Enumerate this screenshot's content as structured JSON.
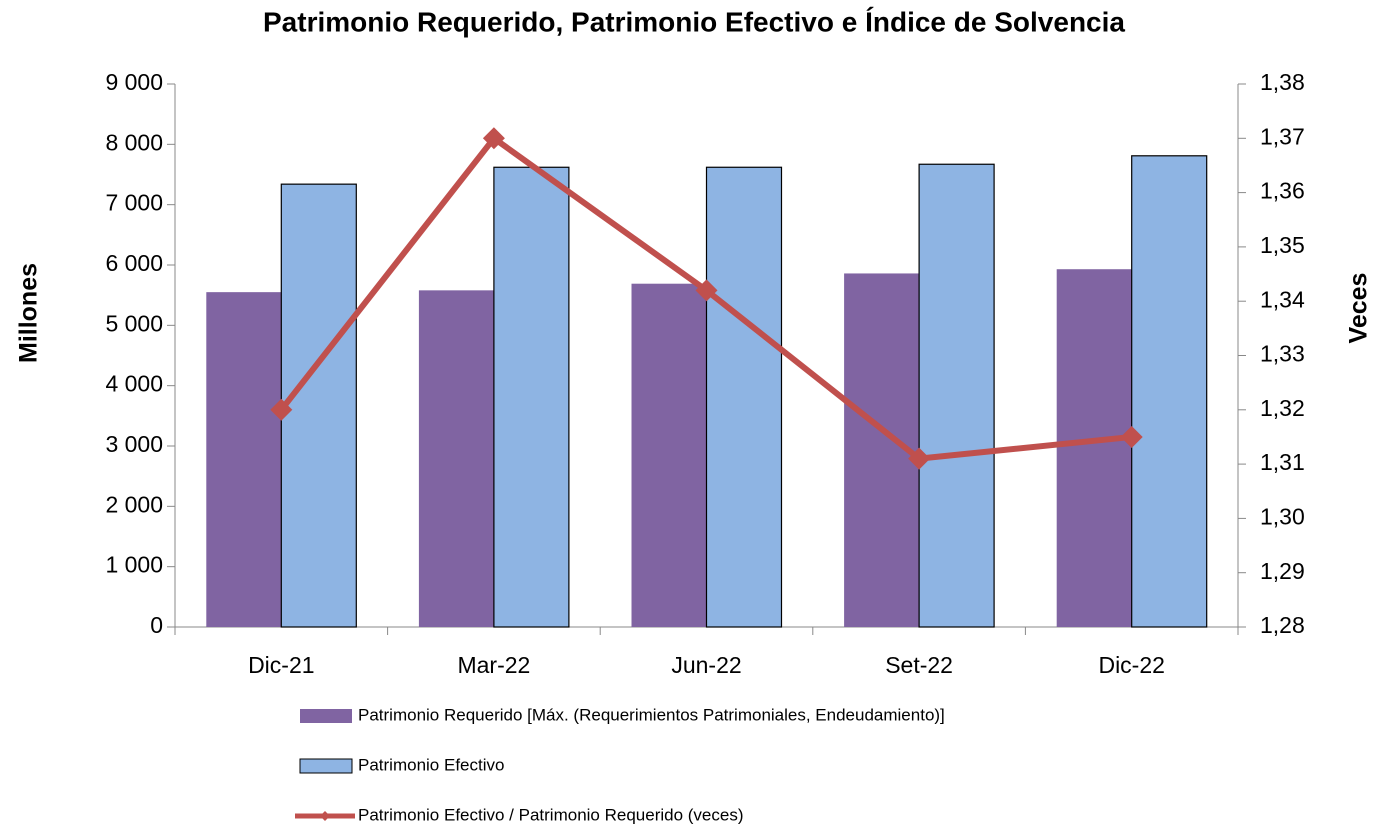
{
  "chart_data": {
    "type": "bar_line",
    "title": "Patrimonio Requerido, Patrimonio Efectivo e Índice de Solvencia",
    "ylabel": "Millones",
    "y2label": "Veces",
    "categories": [
      "Dic-21",
      "Mar-22",
      "Jun-22",
      "Set-22",
      "Dic-22"
    ],
    "series": [
      {
        "name": "Patrimonio Requerido [Máx. (Requerimientos Patrimoniales, Endeudamiento)]",
        "type": "bar",
        "color": "#8064a2",
        "values": [
          5550,
          5580,
          5690,
          5860,
          5930
        ]
      },
      {
        "name": "Patrimonio Efectivo",
        "type": "bar",
        "color": "#8eb4e3",
        "values": [
          7340,
          7620,
          7620,
          7670,
          7810
        ]
      },
      {
        "name": "Patrimonio Efectivo / Patrimonio Requerido (veces)",
        "type": "line",
        "axis": "y2",
        "color": "#c0504d",
        "values": [
          1.32,
          1.37,
          1.342,
          1.311,
          1.315
        ]
      }
    ],
    "ylim": [
      0,
      9000
    ],
    "yticks": [
      0,
      {
        "value": 1000,
        "label": "1 000"
      },
      {
        "value": 2000,
        "label": "2 000"
      },
      {
        "value": 3000,
        "label": "3 000"
      },
      {
        "value": 4000,
        "label": "4 000"
      },
      {
        "value": 5000,
        "label": "5 000"
      },
      {
        "value": 6000,
        "label": "6 000"
      },
      {
        "value": 7000,
        "label": "7 000"
      },
      {
        "value": 8000,
        "label": "8 000"
      },
      {
        "value": 9000,
        "label": "9 000"
      }
    ],
    "y2lim": [
      1.28,
      1.38
    ],
    "y2ticks": [
      {
        "value": 1.28,
        "label": "1,28"
      },
      {
        "value": 1.29,
        "label": "1,29"
      },
      {
        "value": 1.3,
        "label": "1,30"
      },
      {
        "value": 1.31,
        "label": "1,31"
      },
      {
        "value": 1.32,
        "label": "1,32"
      },
      {
        "value": 1.33,
        "label": "1,33"
      },
      {
        "value": 1.34,
        "label": "1,34"
      },
      {
        "value": 1.35,
        "label": "1,35"
      },
      {
        "value": 1.36,
        "label": "1,36"
      },
      {
        "value": 1.37,
        "label": "1,37"
      },
      {
        "value": 1.38,
        "label": "1,38"
      }
    ],
    "grid": false
  }
}
